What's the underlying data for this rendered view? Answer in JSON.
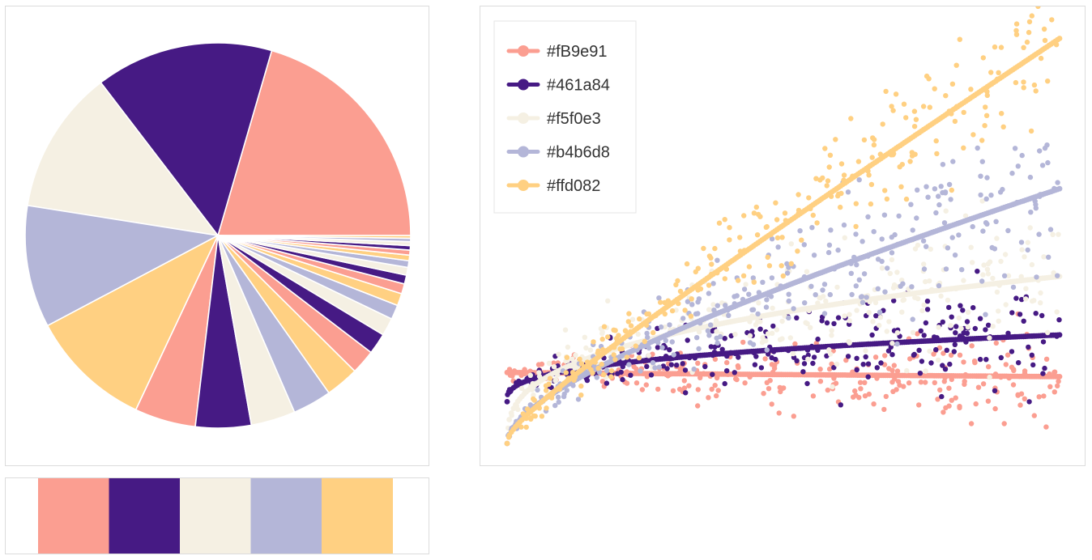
{
  "palette": [
    "#fb9e91",
    "#461a84",
    "#f5f0e3",
    "#b4b6d8",
    "#ffd082"
  ],
  "chart_data": [
    {
      "type": "pie",
      "name": "palette-pie",
      "values": [
        22,
        16,
        13,
        11,
        11,
        5.5,
        5,
        4,
        3.5,
        3,
        2.2,
        1.9,
        1.6,
        1.3,
        1.1,
        0.9,
        0.8,
        0.7,
        0.6,
        0.5,
        0.45,
        0.4,
        0.35,
        0.3,
        0.25
      ],
      "colors": [
        "#fb9e91",
        "#461a84",
        "#f5f0e3",
        "#b4b6d8",
        "#ffd082",
        "#fb9e91",
        "#461a84",
        "#f5f0e3",
        "#b4b6d8",
        "#ffd082",
        "#fb9e91",
        "#461a84",
        "#f5f0e3",
        "#b4b6d8",
        "#ffd082",
        "#fb9e91",
        "#461a84",
        "#f5f0e3",
        "#b4b6d8",
        "#ffd082",
        "#fb9e91",
        "#461a84",
        "#f5f0e3",
        "#b4b6d8",
        "#ffd082"
      ]
    },
    {
      "type": "table",
      "name": "palette-swatches",
      "colors": [
        "#fb9e91",
        "#461a84",
        "#f5f0e3",
        "#b4b6d8",
        "#ffd082"
      ]
    },
    {
      "type": "scatter",
      "name": "palette-scatter",
      "legend_position": "top-left",
      "xlim": [
        0,
        1
      ],
      "ylim": [
        0,
        1
      ],
      "series": [
        {
          "name": "#fB9e91",
          "color": "#fb9e91",
          "start": 0.17,
          "end": 0.16,
          "spread": 0.06,
          "curve": "flat"
        },
        {
          "name": "#461a84",
          "color": "#461a84",
          "start": 0.1,
          "end": 0.26,
          "spread": 0.07,
          "curve": "sqrt"
        },
        {
          "name": "#f5f0e3",
          "color": "#f5f0e3",
          "start": 0.0,
          "end": 0.4,
          "spread": 0.1,
          "curve": "sqrt"
        },
        {
          "name": "#b4b6d8",
          "color": "#b4b6d8",
          "start": 0.0,
          "end": 0.61,
          "spread": 0.11,
          "curve": "mixed"
        },
        {
          "name": "#ffd082",
          "color": "#ffd082",
          "start": 0.0,
          "end": 0.97,
          "spread": 0.09,
          "curve": "linear"
        }
      ]
    }
  ]
}
